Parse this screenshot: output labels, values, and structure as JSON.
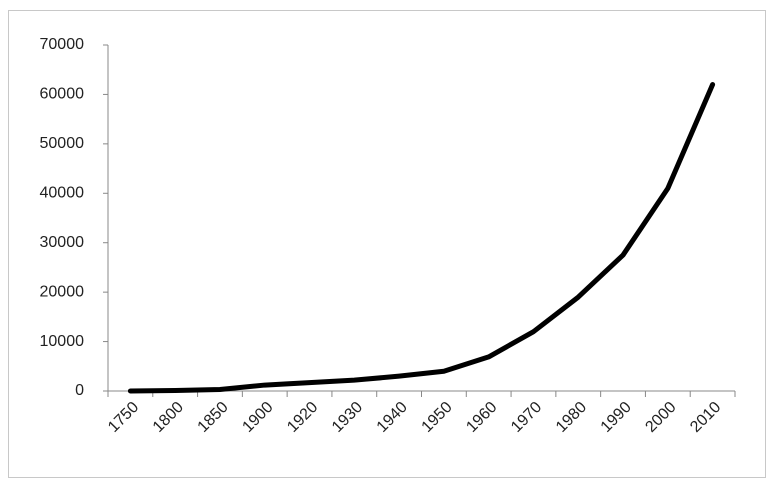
{
  "chart_data": {
    "type": "line",
    "categories": [
      "1750",
      "1800",
      "1850",
      "1900",
      "1920",
      "1930",
      "1940",
      "1950",
      "1960",
      "1970",
      "1980",
      "1990",
      "2000",
      "2010"
    ],
    "values": [
      0,
      100,
      300,
      1200,
      1700,
      2200,
      3000,
      4000,
      6900,
      12000,
      19000,
      27500,
      41000,
      62000
    ],
    "color": "#000000",
    "ylim": [
      0,
      70000
    ],
    "yticks": [
      0,
      10000,
      20000,
      30000,
      40000,
      50000,
      60000,
      70000
    ],
    "grid": false
  }
}
